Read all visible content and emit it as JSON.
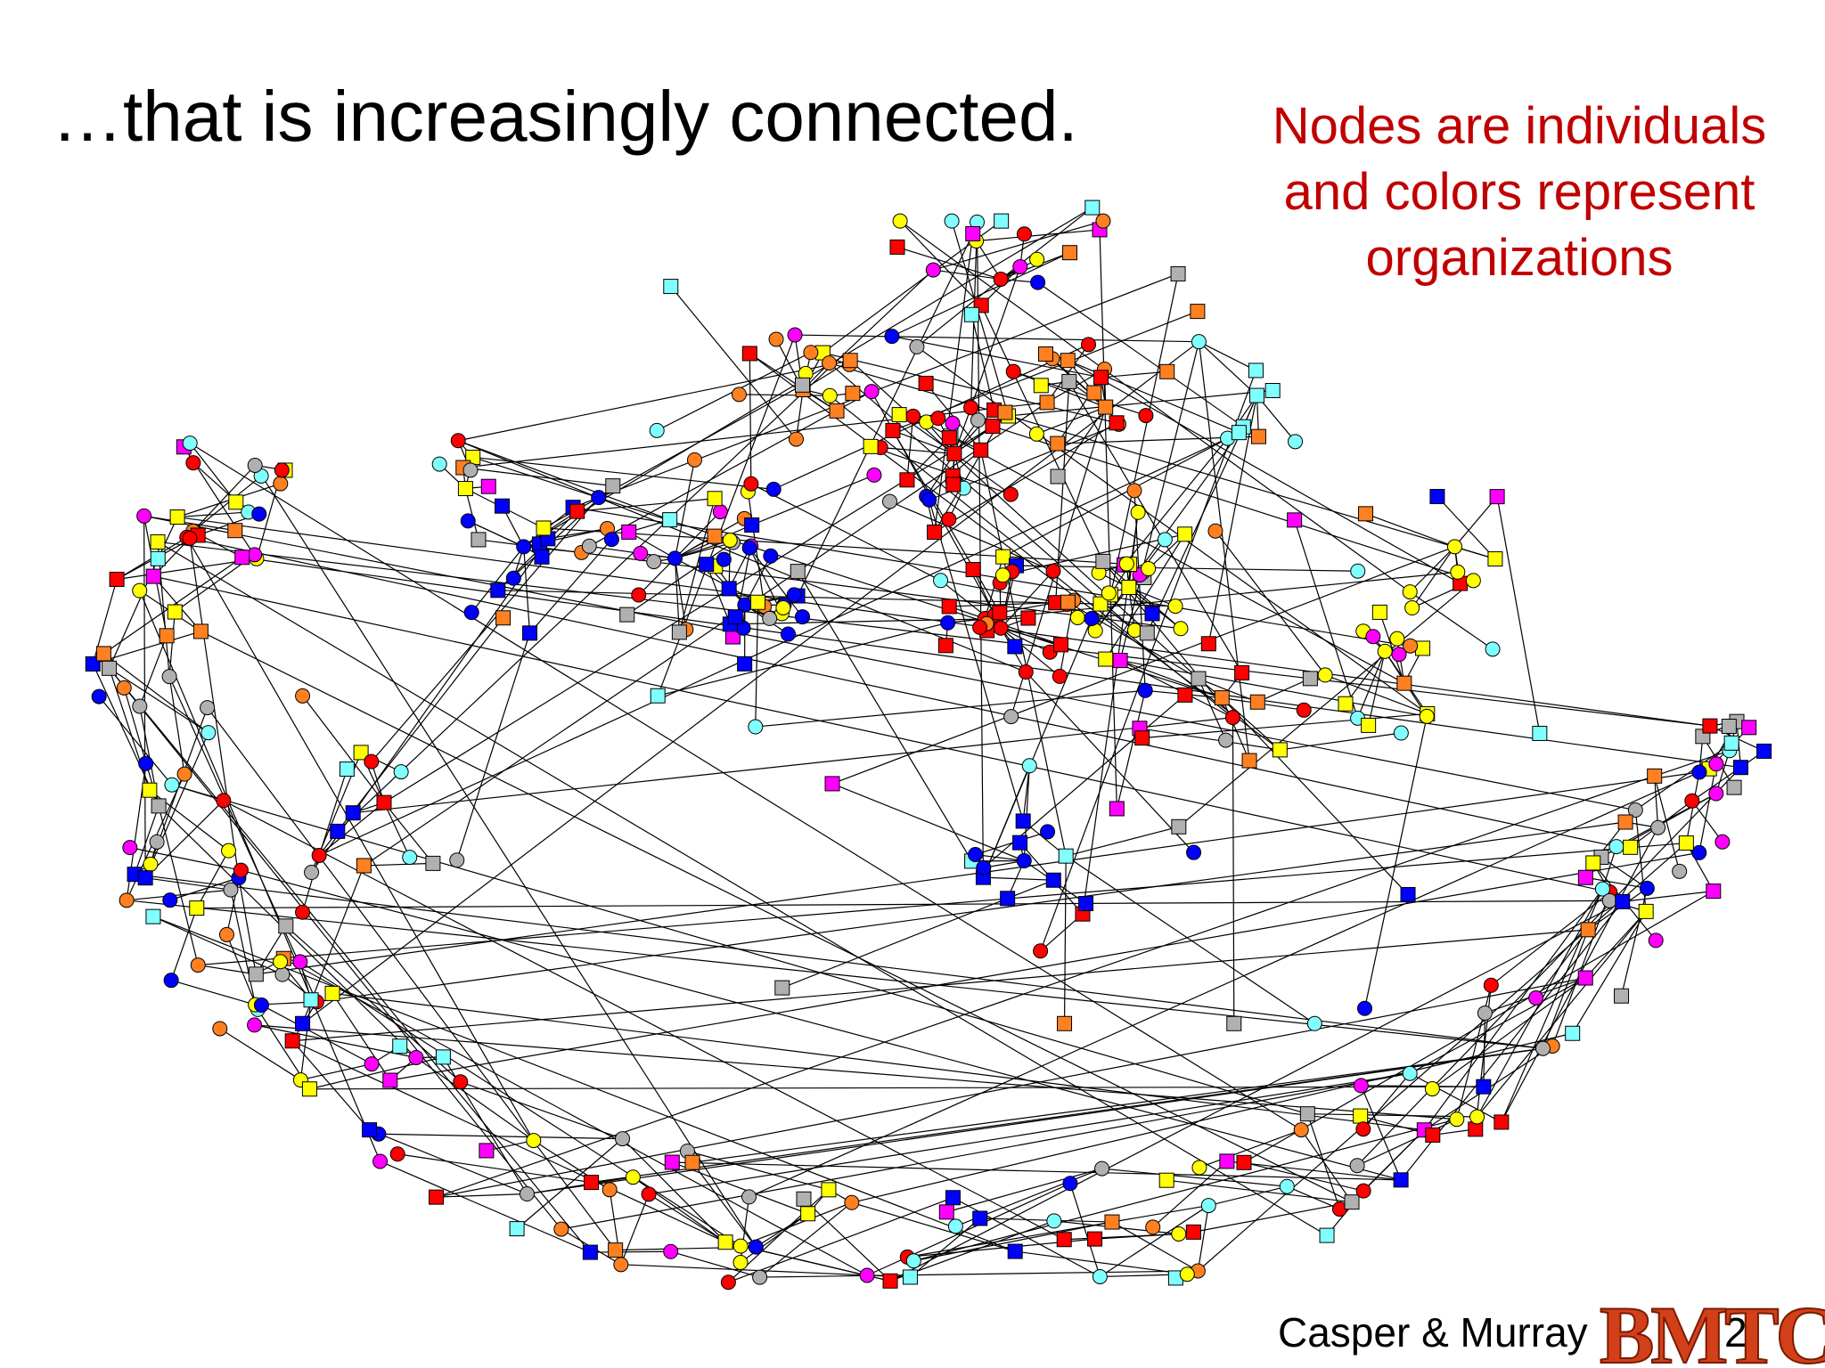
{
  "slide": {
    "title": "…that is increasingly connected.",
    "note": [
      "Nodes are individuals",
      "and colors represent",
      "organizations"
    ],
    "footer": "Casper & Murray",
    "page_number": "2",
    "logo": "BMTC"
  }
}
